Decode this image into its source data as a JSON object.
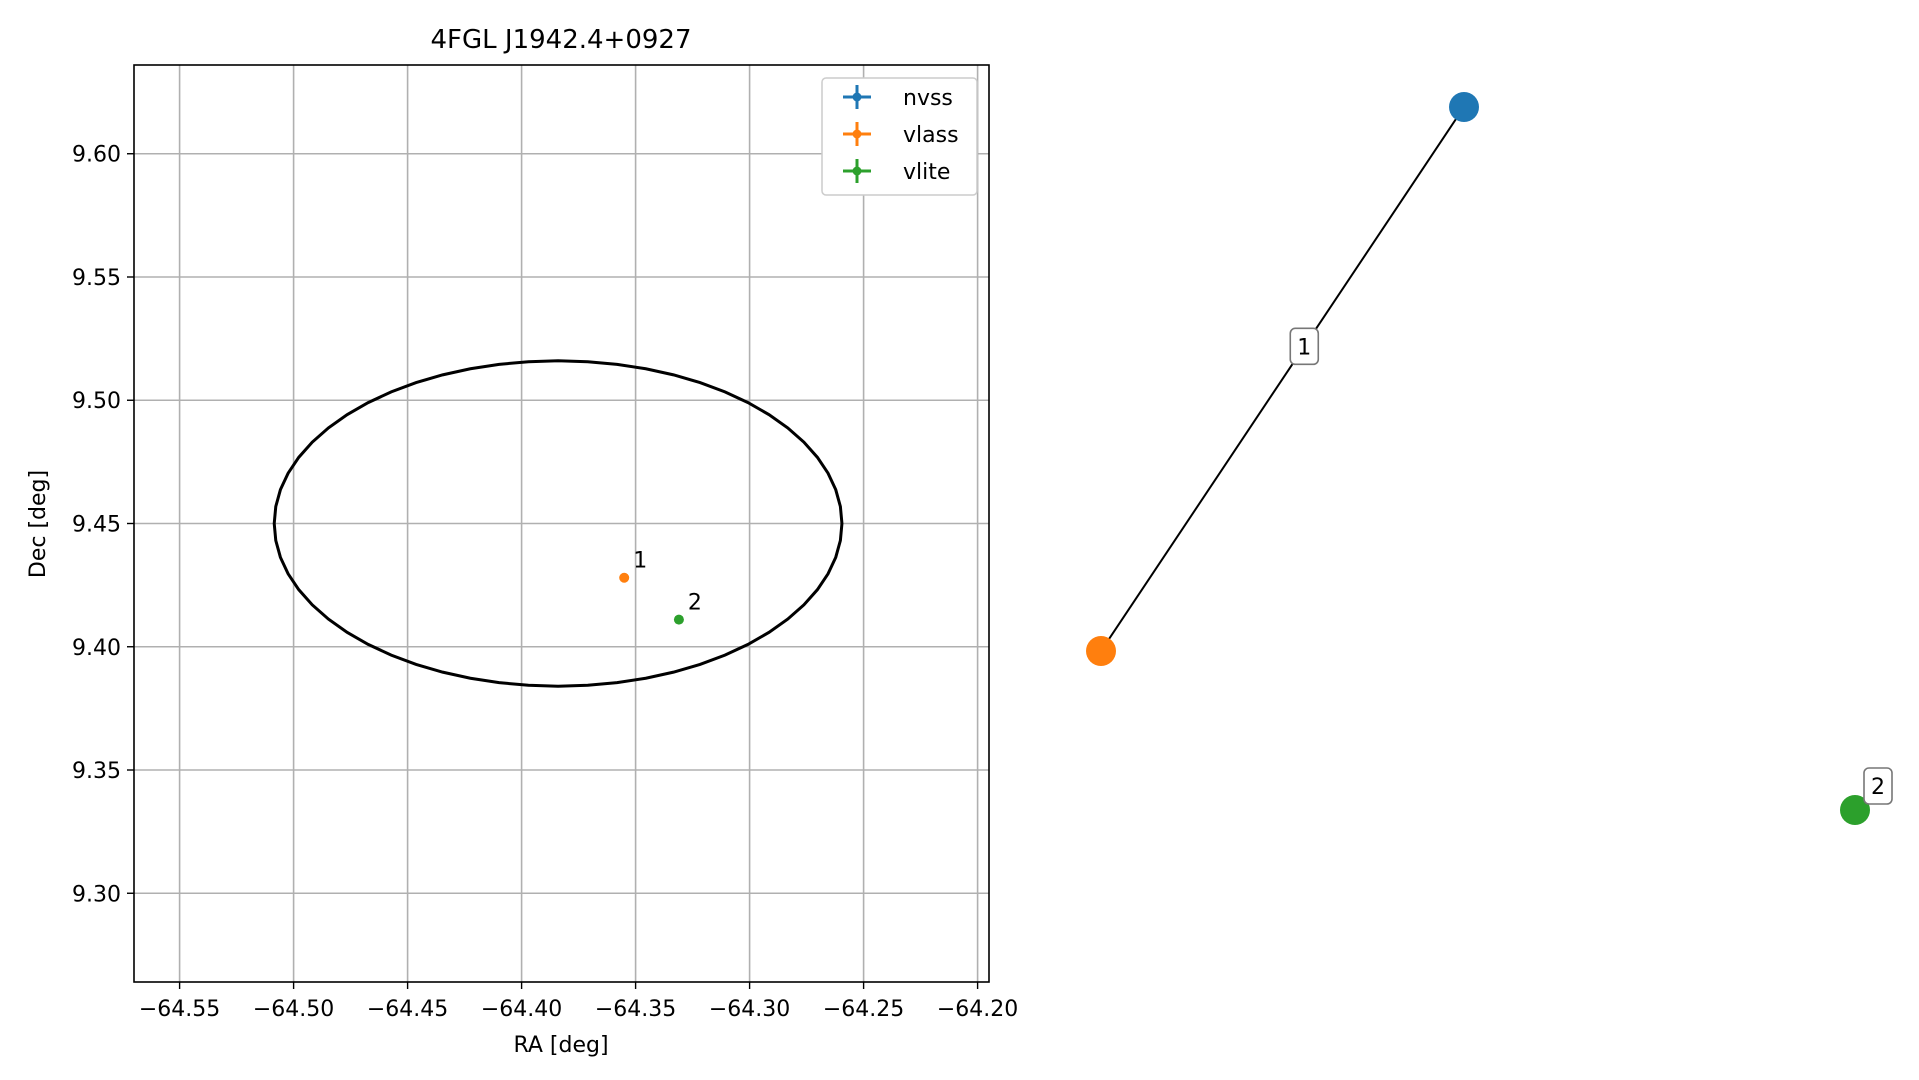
{
  "chart_data": [
    {
      "type": "scatter",
      "title": "4FGL J1942.4+0927",
      "xlabel": "RA [deg]",
      "ylabel": "Dec [deg]",
      "xlim": [
        -64.57,
        -64.195
      ],
      "ylim": [
        9.264,
        9.636
      ],
      "xticks": [
        -64.55,
        -64.5,
        -64.45,
        -64.4,
        -64.35,
        -64.3,
        -64.25,
        -64.2
      ],
      "xtick_labels": [
        "−64.55",
        "−64.50",
        "−64.45",
        "−64.40",
        "−64.35",
        "−64.30",
        "−64.25",
        "−64.20"
      ],
      "yticks": [
        9.3,
        9.35,
        9.4,
        9.45,
        9.5,
        9.55,
        9.6
      ],
      "ytick_labels": [
        "9.30",
        "9.35",
        "9.40",
        "9.45",
        "9.50",
        "9.55",
        "9.60"
      ],
      "grid": true,
      "legend_position": "top-right",
      "ellipse": {
        "center": [
          -64.384,
          9.45
        ],
        "rx": 0.1245,
        "ry": 0.066,
        "color": "#000000"
      },
      "series": [
        {
          "name": "nvss",
          "color": "#1f77b4",
          "points": []
        },
        {
          "name": "vlass",
          "color": "#ff7f0e",
          "points": [
            {
              "x": -64.355,
              "y": 9.428,
              "label": "1"
            }
          ]
        },
        {
          "name": "vlite",
          "color": "#2ca02c",
          "points": [
            {
              "x": -64.331,
              "y": 9.411,
              "label": "2"
            }
          ]
        }
      ]
    },
    {
      "type": "network",
      "nodes": [
        {
          "id": "nvss",
          "color": "#1f77b4"
        },
        {
          "id": "vlass",
          "color": "#ff7f0e"
        },
        {
          "id": "vlite",
          "color": "#2ca02c"
        }
      ],
      "edges": [
        {
          "from": "vlass",
          "to": "nvss",
          "label": "1"
        }
      ],
      "isolated_labels": [
        {
          "node": "vlite",
          "label": "2"
        }
      ]
    }
  ]
}
